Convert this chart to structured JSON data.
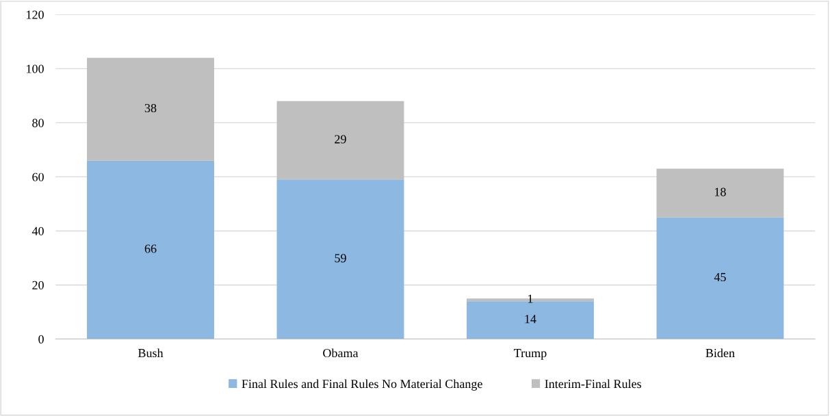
{
  "chart_data": {
    "type": "bar",
    "stacked": true,
    "categories": [
      "Bush",
      "Obama",
      "Trump",
      "Biden"
    ],
    "series": [
      {
        "name": "Final Rules and Final Rules No Material Change",
        "color": "#8db8e2",
        "values": [
          66,
          59,
          14,
          45
        ]
      },
      {
        "name": "Interim-Final Rules",
        "color": "#bfbfbf",
        "values": [
          38,
          29,
          1,
          18
        ]
      }
    ],
    "ylim": [
      0,
      120
    ],
    "yticks": [
      0,
      20,
      40,
      60,
      80,
      100,
      120
    ],
    "grid": "y",
    "legend": "bottom",
    "data_labels": true
  }
}
